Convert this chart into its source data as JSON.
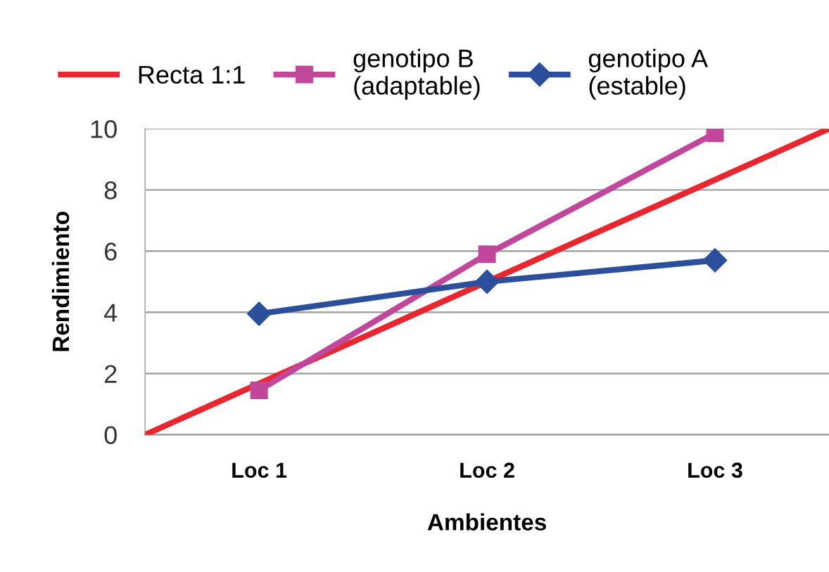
{
  "chart_data": {
    "type": "line",
    "xlabel": "Ambientes",
    "ylabel": "Rendimiento",
    "categories": [
      null,
      "Loc 1",
      null,
      "Loc 2",
      null,
      "Loc 3",
      null
    ],
    "ylim": [
      0,
      10
    ],
    "yticks": [
      0,
      2,
      4,
      6,
      8,
      10
    ],
    "grid": "y",
    "legend": "top",
    "series": [
      {
        "name": "Recta 1:1",
        "color": "#e8262f",
        "values": [
          0,
          1.67,
          3.33,
          5.0,
          6.67,
          8.33,
          10
        ],
        "marker": "none"
      },
      {
        "name": "genotipo B\n(adaptable)",
        "color": "#c0479b",
        "values": [
          null,
          1.45,
          null,
          5.9,
          null,
          9.85,
          null
        ],
        "marker": "square"
      },
      {
        "name": "genotipo A\n(estable)",
        "color": "#2b4f9a",
        "values": [
          null,
          3.95,
          null,
          5.0,
          null,
          5.7,
          null
        ],
        "marker": "diamond"
      }
    ]
  }
}
